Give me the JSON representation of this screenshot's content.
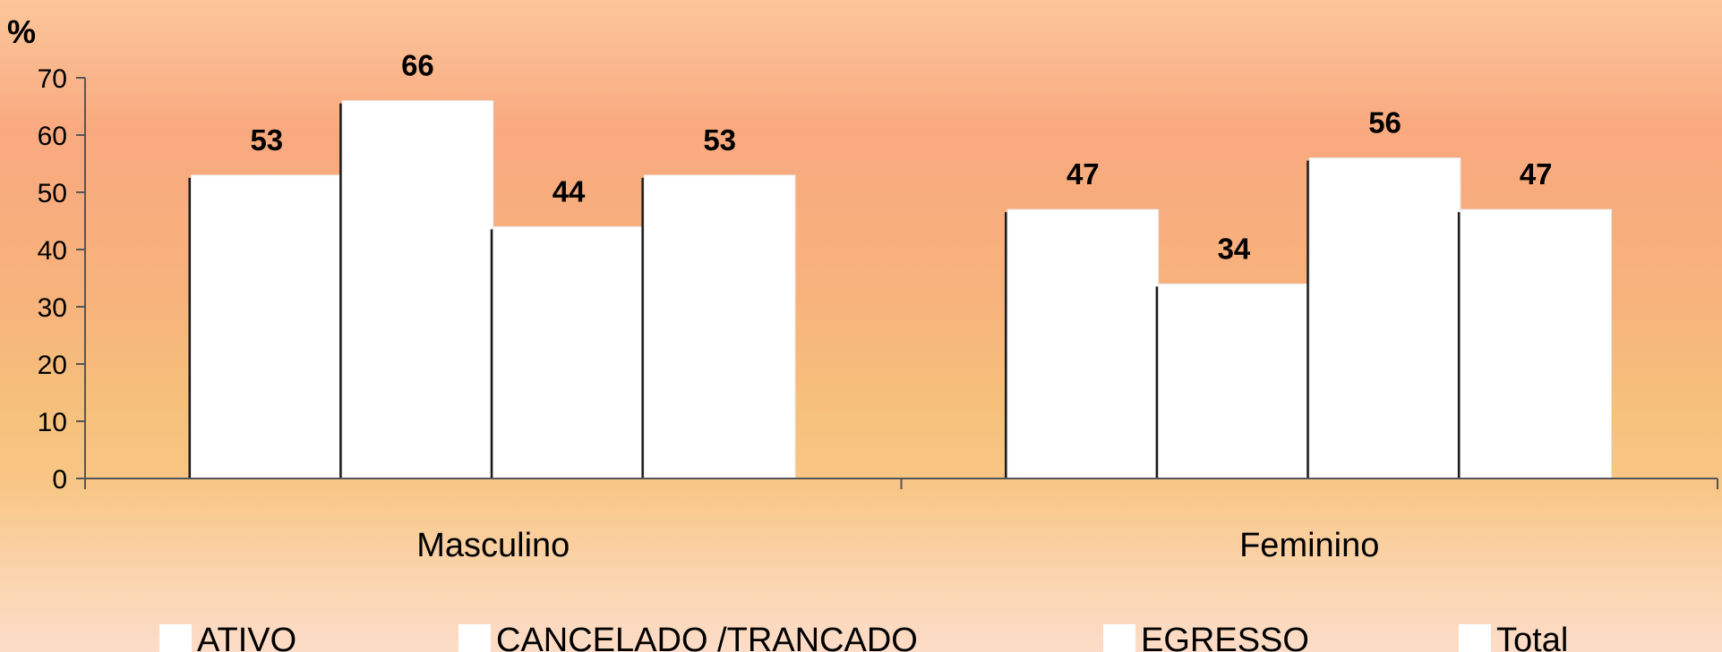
{
  "chart_data": {
    "type": "bar",
    "ylabel": "%",
    "ylim": [
      0,
      70
    ],
    "yticks": [
      0,
      10,
      20,
      30,
      40,
      50,
      60,
      70
    ],
    "categories": [
      "Masculino",
      "Feminino"
    ],
    "series": [
      {
        "name": "ATIVO",
        "values": [
          53,
          47
        ]
      },
      {
        "name": "CANCELADO /TRANCADO",
        "values": [
          66,
          34
        ]
      },
      {
        "name": "EGRESSO",
        "values": [
          44,
          56
        ]
      },
      {
        "name": "Total",
        "values": [
          53,
          47
        ]
      }
    ],
    "legend_position": "bottom",
    "grid": false,
    "bar_color": "#ffffff",
    "background": "#f9b07e"
  }
}
